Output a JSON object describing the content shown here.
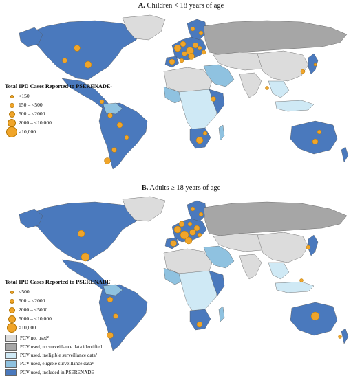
{
  "panel_a": {
    "letter": "A.",
    "title": "Children < 18 years of age",
    "legend_title": "Total IPD Cases Reported to PSERENADE¹",
    "legend_items": [
      {
        "label": "<150",
        "size": 3
      },
      {
        "label": "150 – <500",
        "size": 5
      },
      {
        "label": "500 – <2000",
        "size": 7
      },
      {
        "label": "2000 – <10,000",
        "size": 10
      },
      {
        "label": "≥10,000",
        "size": 14
      }
    ]
  },
  "panel_b": {
    "letter": "B.",
    "title": "Adults ≥ 18 years of age",
    "legend_title": "Total IPD Cases Reported to PSERENADE¹",
    "legend_items": [
      {
        "label": "<500",
        "size": 3
      },
      {
        "label": "500 – <2000",
        "size": 5
      },
      {
        "label": "2000 – <5000",
        "size": 7
      },
      {
        "label": "5000 – <10,000",
        "size": 9
      },
      {
        "label": "≥10,000",
        "size": 12
      }
    ]
  },
  "fill_legend": [
    {
      "label": "PCV not used²",
      "color": "#dcdcdc"
    },
    {
      "label": "PCV used, no surveillance data identified",
      "color": "#a6a6a6"
    },
    {
      "label": "PCV used, ineligible surveillance data³",
      "color": "#cfe9f5"
    },
    {
      "label": "PCV used, eligible surveillance data⁴",
      "color": "#8fc2e0"
    },
    {
      "label": "PCV used, included in PSERENADE",
      "color": "#4a79bd"
    }
  ],
  "colors": {
    "included": "#4a79bd",
    "eligible": "#8fc2e0",
    "ineligible": "#cfe9f5",
    "no_data": "#a6a6a6",
    "not_used": "#dcdcdc",
    "bubble": "#f0a52a"
  }
}
